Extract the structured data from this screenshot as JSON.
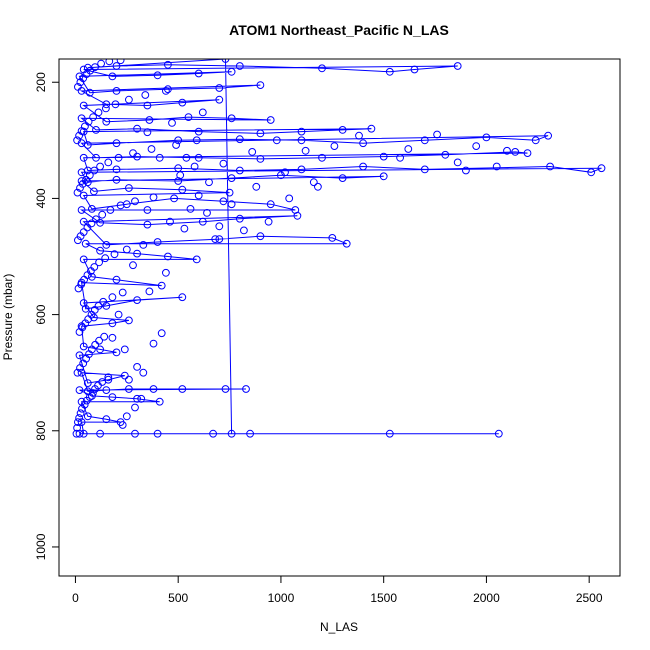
{
  "chart_data": {
    "type": "scatter",
    "title": "ATOM1 Northeast_Pacific N_LAS",
    "xlabel": "N_LAS",
    "ylabel": "Pressure (mbar)",
    "xlim": [
      -80,
      2650
    ],
    "ylim": [
      1050,
      160
    ],
    "y_reversed": true,
    "x_ticks": [
      0,
      500,
      1000,
      1500,
      2000,
      2500
    ],
    "x_tick_labels": [
      "0",
      "500",
      "1000",
      "1500",
      "2000",
      "2500"
    ],
    "y_ticks": [
      200,
      400,
      600,
      800,
      1000
    ],
    "y_tick_labels": [
      "200",
      "400",
      "600",
      "800",
      "1000"
    ],
    "grid": false,
    "legend": "none",
    "series_color": "#0000ff",
    "series": [
      {
        "mode": "lines+markers",
        "points": [
          [
            20,
            805
          ],
          [
            2060,
            805
          ],
          [
            1530,
            805
          ],
          [
            850,
            805
          ],
          [
            670,
            805
          ],
          [
            400,
            805
          ],
          [
            290,
            805
          ],
          [
            120,
            805
          ],
          [
            40,
            805
          ],
          [
            30,
            785
          ],
          [
            220,
            785
          ],
          [
            150,
            780
          ],
          [
            60,
            775
          ],
          [
            30,
            750
          ],
          [
            410,
            750
          ],
          [
            300,
            745
          ],
          [
            180,
            742
          ],
          [
            80,
            740
          ],
          [
            20,
            730
          ],
          [
            830,
            728
          ],
          [
            730,
            728
          ],
          [
            520,
            728
          ],
          [
            380,
            728
          ],
          [
            260,
            728
          ],
          [
            150,
            730
          ],
          [
            60,
            732
          ],
          [
            30,
            700
          ],
          [
            240,
            705
          ],
          [
            160,
            712
          ],
          [
            60,
            718
          ],
          [
            20,
            670
          ],
          [
            200,
            665
          ],
          [
            120,
            660
          ],
          [
            40,
            655
          ],
          [
            30,
            620
          ],
          [
            180,
            615
          ],
          [
            260,
            610
          ],
          [
            90,
            605
          ],
          [
            40,
            580
          ],
          [
            520,
            570
          ],
          [
            300,
            575
          ],
          [
            150,
            585
          ],
          [
            50,
            590
          ],
          [
            30,
            545
          ],
          [
            420,
            550
          ],
          [
            200,
            540
          ],
          [
            80,
            535
          ],
          [
            40,
            505
          ],
          [
            590,
            505
          ],
          [
            450,
            500
          ],
          [
            300,
            495
          ],
          [
            120,
            490
          ],
          [
            50,
            478
          ],
          [
            1320,
            478
          ],
          [
            1250,
            468
          ],
          [
            900,
            465
          ],
          [
            700,
            470
          ],
          [
            400,
            475
          ],
          [
            150,
            480
          ],
          [
            40,
            440
          ],
          [
            1080,
            430
          ],
          [
            800,
            435
          ],
          [
            620,
            440
          ],
          [
            350,
            445
          ],
          [
            120,
            442
          ],
          [
            30,
            420
          ],
          [
            1070,
            420
          ],
          [
            950,
            410
          ],
          [
            720,
            405
          ],
          [
            480,
            400
          ],
          [
            250,
            410
          ],
          [
            80,
            418
          ],
          [
            40,
            395
          ],
          [
            750,
            390
          ],
          [
            520,
            385
          ],
          [
            260,
            382
          ],
          [
            90,
            388
          ],
          [
            30,
            370
          ],
          [
            1500,
            362
          ],
          [
            1300,
            365
          ],
          [
            1000,
            360
          ],
          [
            760,
            365
          ],
          [
            500,
            370
          ],
          [
            200,
            368
          ],
          [
            60,
            372
          ],
          [
            30,
            355
          ],
          [
            2560,
            348
          ],
          [
            2510,
            355
          ],
          [
            2310,
            345
          ],
          [
            1700,
            350
          ],
          [
            1400,
            345
          ],
          [
            1100,
            350
          ],
          [
            800,
            352
          ],
          [
            500,
            348
          ],
          [
            200,
            350
          ],
          [
            60,
            352
          ],
          [
            40,
            330
          ],
          [
            2200,
            322
          ],
          [
            2140,
            320
          ],
          [
            1800,
            325
          ],
          [
            1500,
            328
          ],
          [
            1200,
            330
          ],
          [
            900,
            332
          ],
          [
            600,
            330
          ],
          [
            300,
            328
          ],
          [
            100,
            330
          ],
          [
            30,
            305
          ],
          [
            2300,
            292
          ],
          [
            2240,
            300
          ],
          [
            2000,
            295
          ],
          [
            1700,
            300
          ],
          [
            1400,
            305
          ],
          [
            1100,
            300
          ],
          [
            800,
            298
          ],
          [
            500,
            300
          ],
          [
            200,
            305
          ],
          [
            60,
            308
          ],
          [
            40,
            285
          ],
          [
            1440,
            280
          ],
          [
            1300,
            282
          ],
          [
            1100,
            285
          ],
          [
            900,
            288
          ],
          [
            600,
            285
          ],
          [
            300,
            280
          ],
          [
            100,
            282
          ],
          [
            30,
            262
          ],
          [
            950,
            265
          ],
          [
            760,
            262
          ],
          [
            550,
            260
          ],
          [
            360,
            265
          ],
          [
            150,
            268
          ],
          [
            40,
            240
          ],
          [
            700,
            230
          ],
          [
            520,
            235
          ],
          [
            350,
            240
          ],
          [
            150,
            238
          ],
          [
            30,
            215
          ],
          [
            900,
            205
          ],
          [
            700,
            210
          ],
          [
            450,
            212
          ],
          [
            200,
            215
          ],
          [
            70,
            218
          ],
          [
            20,
            190
          ],
          [
            760,
            182
          ],
          [
            600,
            185
          ],
          [
            400,
            188
          ],
          [
            180,
            190
          ],
          [
            40,
            178
          ],
          [
            1860,
            172
          ],
          [
            1650,
            178
          ],
          [
            1530,
            182
          ],
          [
            1200,
            176
          ],
          [
            800,
            172
          ],
          [
            450,
            170
          ],
          [
            200,
            172
          ],
          [
            60,
            175
          ],
          [
            730,
            160
          ],
          [
            760,
            805
          ]
        ]
      },
      {
        "mode": "markers",
        "points": [
          [
            5,
            805
          ],
          [
            8,
            795
          ],
          [
            12,
            785
          ],
          [
            18,
            778
          ],
          [
            25,
            770
          ],
          [
            32,
            762
          ],
          [
            45,
            755
          ],
          [
            55,
            748
          ],
          [
            70,
            742
          ],
          [
            85,
            735
          ],
          [
            95,
            728
          ],
          [
            110,
            722
          ],
          [
            130,
            716
          ],
          [
            160,
            708
          ],
          [
            10,
            700
          ],
          [
            22,
            692
          ],
          [
            38,
            684
          ],
          [
            52,
            676
          ],
          [
            66,
            668
          ],
          [
            80,
            660
          ],
          [
            96,
            652
          ],
          [
            115,
            645
          ],
          [
            140,
            638
          ],
          [
            20,
            630
          ],
          [
            34,
            622
          ],
          [
            48,
            615
          ],
          [
            62,
            608
          ],
          [
            78,
            600
          ],
          [
            94,
            592
          ],
          [
            112,
            585
          ],
          [
            135,
            578
          ],
          [
            180,
            570
          ],
          [
            230,
            562
          ],
          [
            15,
            555
          ],
          [
            28,
            548
          ],
          [
            42,
            540
          ],
          [
            58,
            532
          ],
          [
            75,
            525
          ],
          [
            92,
            518
          ],
          [
            115,
            510
          ],
          [
            145,
            503
          ],
          [
            190,
            496
          ],
          [
            250,
            488
          ],
          [
            330,
            480
          ],
          [
            12,
            472
          ],
          [
            25,
            465
          ],
          [
            40,
            458
          ],
          [
            58,
            450
          ],
          [
            78,
            443
          ],
          [
            100,
            436
          ],
          [
            130,
            428
          ],
          [
            170,
            420
          ],
          [
            220,
            412
          ],
          [
            290,
            405
          ],
          [
            380,
            398
          ],
          [
            10,
            390
          ],
          [
            22,
            382
          ],
          [
            36,
            375
          ],
          [
            52,
            368
          ],
          [
            70,
            360
          ],
          [
            92,
            352
          ],
          [
            120,
            345
          ],
          [
            160,
            338
          ],
          [
            210,
            330
          ],
          [
            280,
            322
          ],
          [
            370,
            315
          ],
          [
            490,
            308
          ],
          [
            8,
            300
          ],
          [
            18,
            292
          ],
          [
            30,
            284
          ],
          [
            46,
            276
          ],
          [
            64,
            268
          ],
          [
            86,
            260
          ],
          [
            112,
            252
          ],
          [
            148,
            245
          ],
          [
            195,
            238
          ],
          [
            260,
            230
          ],
          [
            340,
            222
          ],
          [
            440,
            215
          ],
          [
            12,
            208
          ],
          [
            24,
            200
          ],
          [
            38,
            193
          ],
          [
            54,
            186
          ],
          [
            72,
            180
          ],
          [
            95,
            174
          ],
          [
            125,
            168
          ],
          [
            165,
            164
          ],
          [
            220,
            162
          ],
          [
            600,
            395
          ],
          [
            650,
            372
          ],
          [
            560,
            418
          ],
          [
            640,
            425
          ],
          [
            530,
            452
          ],
          [
            680,
            470
          ],
          [
            510,
            360
          ],
          [
            590,
            300
          ],
          [
            620,
            252
          ],
          [
            420,
            632
          ],
          [
            380,
            650
          ],
          [
            300,
            690
          ],
          [
            260,
            712
          ],
          [
            330,
            700
          ],
          [
            360,
            560
          ],
          [
            440,
            528
          ],
          [
            280,
            515
          ],
          [
            210,
            600
          ],
          [
            180,
            640
          ],
          [
            240,
            660
          ],
          [
            320,
            745
          ],
          [
            290,
            760
          ],
          [
            250,
            775
          ],
          [
            230,
            790
          ],
          [
            350,
            420
          ],
          [
            460,
            440
          ],
          [
            410,
            330
          ],
          [
            350,
            286
          ],
          [
            470,
            270
          ],
          [
            540,
            330
          ],
          [
            580,
            345
          ],
          [
            720,
            340
          ],
          [
            860,
            320
          ],
          [
            980,
            300
          ],
          [
            1120,
            318
          ],
          [
            1260,
            310
          ],
          [
            1380,
            292
          ],
          [
            1020,
            355
          ],
          [
            1160,
            372
          ],
          [
            880,
            380
          ],
          [
            760,
            410
          ],
          [
            700,
            448
          ],
          [
            820,
            455
          ],
          [
            940,
            440
          ],
          [
            1040,
            400
          ],
          [
            1180,
            380
          ],
          [
            1620,
            315
          ],
          [
            1860,
            338
          ],
          [
            1950,
            310
          ],
          [
            2050,
            345
          ],
          [
            1760,
            290
          ],
          [
            1580,
            330
          ],
          [
            2100,
            318
          ],
          [
            1900,
            352
          ]
        ]
      }
    ]
  }
}
